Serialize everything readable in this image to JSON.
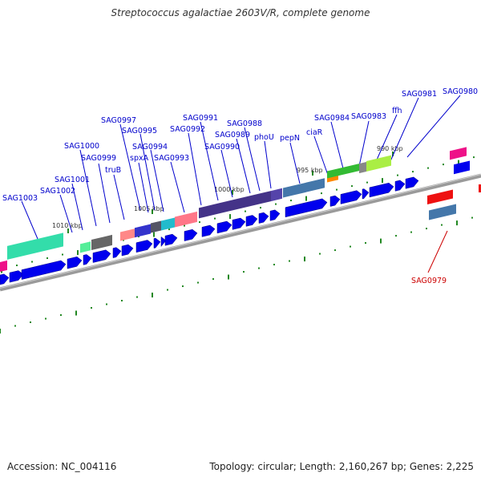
{
  "title": "Streptococcus agalactiae 2603V/R, complete genome",
  "footer": {
    "accession": "Accession: NC_004116",
    "summary": "Topology: circular; Length: 2,160,267 bp; Genes: 2,225"
  },
  "scale_labels": [
    "1010 kbp",
    "1005 kbp",
    "1000 kbp",
    "995 kbp",
    "990 kbp"
  ],
  "gene_labels_top": [
    "SAG1003",
    "SAG1002",
    "SAG1001",
    "SAG1000",
    "SAG0999",
    "truB",
    "SAG0997",
    "spxA",
    "SAG0995",
    "SAG0994",
    "SAG0993",
    "SAG0992",
    "SAG0991",
    "SAG0990",
    "SAG0989",
    "SAG0988",
    "phoU",
    "pepN",
    "ciaR",
    "SAG0984",
    "SAG0983",
    "ffh",
    "SAG0981",
    "SAG0980"
  ],
  "gene_label_bottom": "SAG0979",
  "colors": {
    "label": "#0000cc",
    "highlight": "#cc0000",
    "strand": "#0000ee",
    "backbone": "#888888",
    "tick": "#228822"
  }
}
